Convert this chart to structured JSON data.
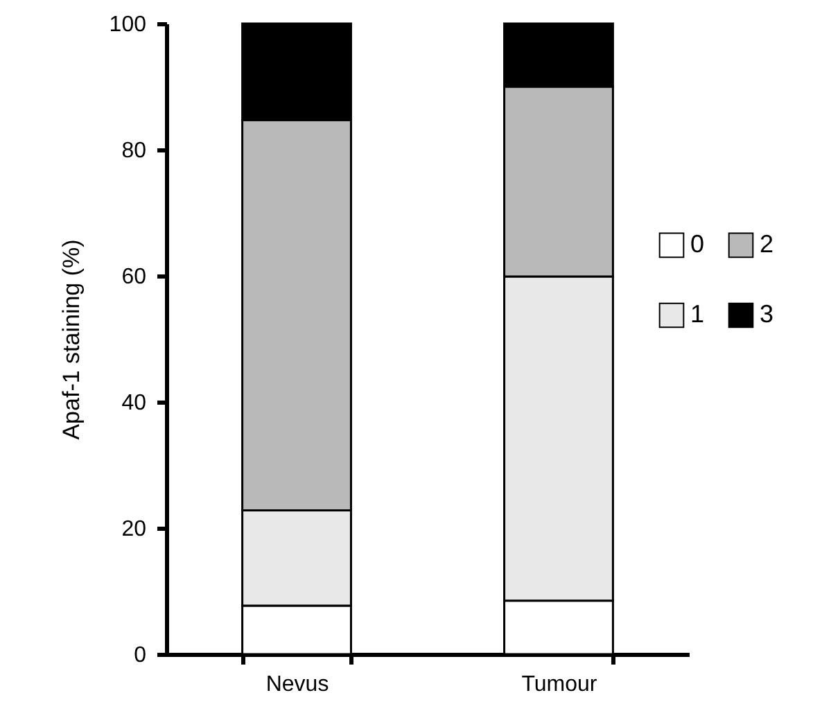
{
  "chart_data": {
    "type": "bar",
    "stacked": true,
    "ylabel": "Apaf-1 staining (%)",
    "categories": [
      "Nevus",
      "Tumour"
    ],
    "series": [
      {
        "name": "0",
        "color": "#ffffff",
        "values": [
          7.7,
          8.5
        ]
      },
      {
        "name": "1",
        "color": "#e8e8e8",
        "values": [
          15.1,
          51.4
        ]
      },
      {
        "name": "2",
        "color": "#b9b9b9",
        "values": [
          61.9,
          30.1
        ]
      },
      {
        "name": "3",
        "color": "#000000",
        "values": [
          15.3,
          10
        ]
      }
    ],
    "ylim": [
      0,
      100
    ],
    "yticks": [
      0,
      20,
      40,
      60,
      80,
      100
    ],
    "grid": false,
    "legend": "right"
  }
}
